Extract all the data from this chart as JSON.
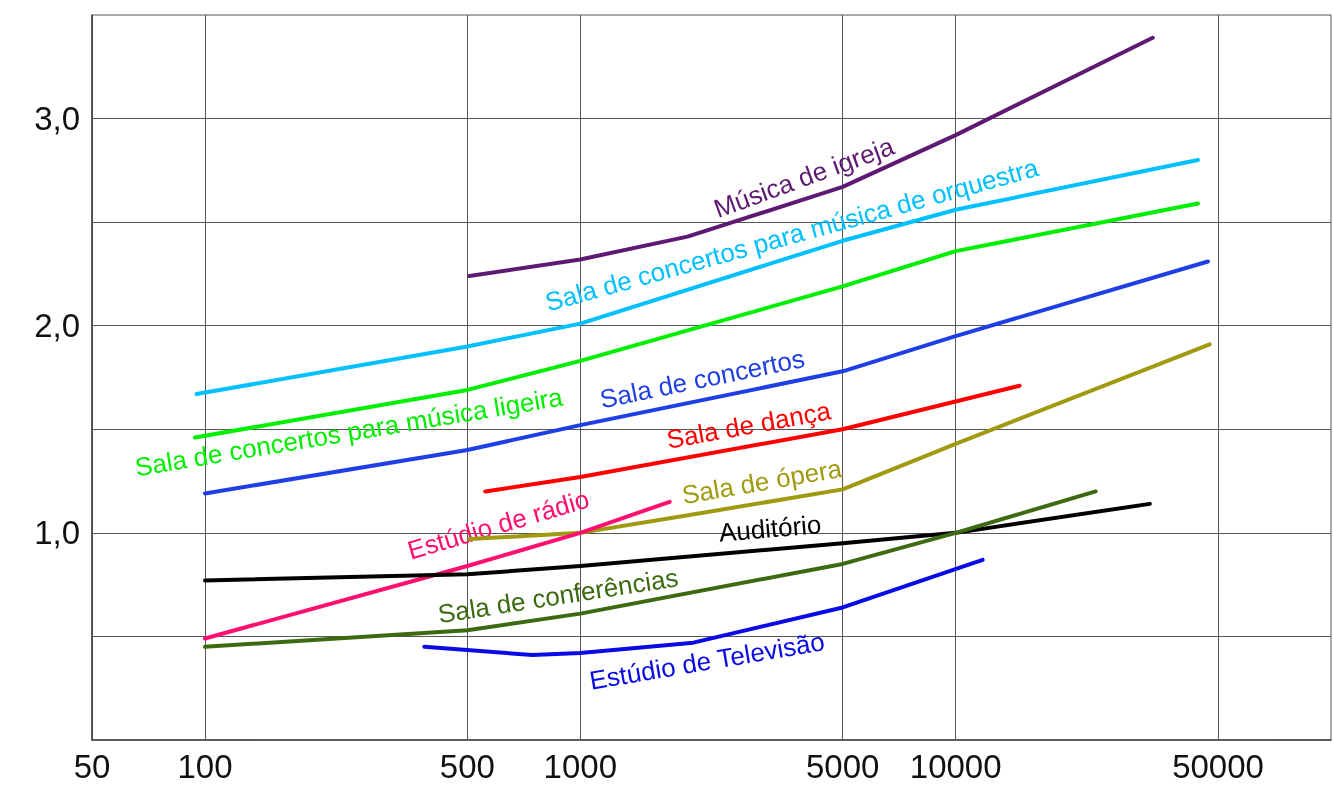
{
  "chart_data": {
    "type": "line",
    "series": [
      {
        "name": "Música de igreja",
        "color": "#5e1a73",
        "x": [
          506,
          1000,
          1930,
          5000,
          10000,
          33500
        ],
        "values": [
          2.24,
          2.32,
          2.43,
          2.67,
          2.92,
          3.39
        ]
      },
      {
        "name": "Sala de concertos para música de orquestra",
        "color": "#00c0ff",
        "x": [
          95,
          500,
          1000,
          5000,
          10000,
          44200
        ],
        "values": [
          1.67,
          1.9,
          2.01,
          2.41,
          2.56,
          2.8
        ]
      },
      {
        "name": "Sala de concertos para música ligeira",
        "color": "#00ee00",
        "x": [
          94,
          500,
          1000,
          5000,
          10000,
          44200
        ],
        "values": [
          1.46,
          1.69,
          1.83,
          2.19,
          2.36,
          2.59
        ]
      },
      {
        "name": "Sala de concertos",
        "color": "#1f3fe6",
        "x": [
          100,
          500,
          1000,
          5000,
          10000,
          47000
        ],
        "values": [
          1.19,
          1.4,
          1.52,
          1.78,
          1.95,
          2.31
        ]
      },
      {
        "name": "Sala de dança",
        "color": "#ff0000",
        "x": [
          558,
          1000,
          5000,
          14800
        ],
        "values": [
          1.2,
          1.27,
          1.5,
          1.71
        ]
      },
      {
        "name": "Sala de ópera",
        "color": "#a09a10",
        "x": [
          506,
          1000,
          2010,
          5000,
          10000,
          47500
        ],
        "values": [
          0.97,
          1.0,
          1.09,
          1.21,
          1.43,
          1.91
        ]
      },
      {
        "name": "Estúdio de rádio",
        "color": "#ff1070",
        "x": [
          100,
          500,
          1000,
          1730
        ],
        "values": [
          0.49,
          0.84,
          1.0,
          1.15
        ]
      },
      {
        "name": "Auditório",
        "color": "#000000",
        "x": [
          100,
          500,
          1000,
          5000,
          10000,
          32900
        ],
        "values": [
          0.77,
          0.8,
          0.84,
          0.95,
          1.0,
          1.14
        ]
      },
      {
        "name": "Sala de conferências",
        "color": "#3b6a10",
        "x": [
          100,
          500,
          1000,
          5000,
          10000,
          23600
        ],
        "values": [
          0.45,
          0.53,
          0.61,
          0.85,
          1.0,
          1.2
        ]
      },
      {
        "name": "Estúdio de Televisão",
        "color": "#0a0ae6",
        "x": [
          384,
          745,
          1000,
          2000,
          5000,
          11800
        ],
        "values": [
          0.45,
          0.41,
          0.42,
          0.47,
          0.64,
          0.87
        ]
      }
    ],
    "log": "x",
    "xlim": [
      50,
      100000
    ],
    "xticks": [
      50,
      100,
      500,
      1000,
      5000,
      10000,
      50000
    ],
    "ylim": [
      0,
      3.5
    ],
    "yticks": [
      {
        "value": 0.5,
        "label": null
      },
      {
        "value": 1,
        "label": "1,0"
      },
      {
        "value": 1.5,
        "label": null
      },
      {
        "value": 2,
        "label": "2,0"
      },
      {
        "value": 2.5,
        "label": null
      },
      {
        "value": 3,
        "label": "3,0"
      }
    ],
    "grid": true,
    "legend": false,
    "marker": "none",
    "line_style": "solid"
  }
}
